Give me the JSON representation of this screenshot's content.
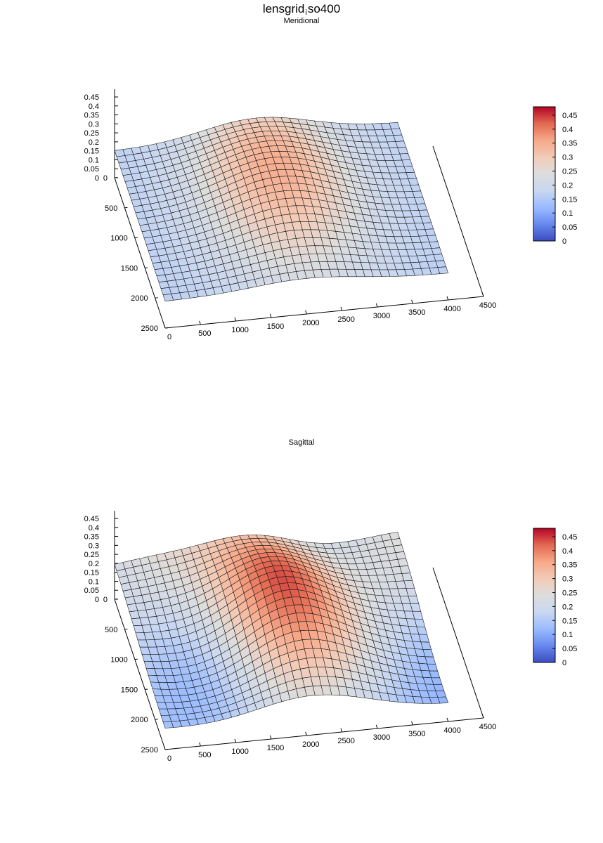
{
  "title": {
    "main": "lensgrid",
    "subscript": "i",
    "suffix": "so400"
  },
  "colorbar": {
    "ticks": [
      "0.45",
      "0.4",
      "0.35",
      "0.3",
      "0.25",
      "0.2",
      "0.15",
      "0.1",
      "0.05",
      "0"
    ],
    "range": [
      0,
      0.48
    ],
    "colormap": [
      "#3b4cc0",
      "#6788ee",
      "#9abbff",
      "#c9d7f0",
      "#dddddd",
      "#f2cbb7",
      "#f7a889",
      "#e26952",
      "#b40426"
    ]
  },
  "chart_data": [
    {
      "type": "surface",
      "title": "Meridional",
      "x_ticks": [
        "0",
        "500",
        "1000",
        "1500",
        "2000",
        "2500",
        "3000",
        "3500",
        "4000",
        "4500"
      ],
      "y_ticks": [
        "0",
        "500",
        "1000",
        "1500",
        "2000",
        "2500"
      ],
      "z_ticks": [
        "0.45",
        "0.4",
        "0.35",
        "0.3",
        "0.25",
        "0.2",
        "0.15",
        "0.1",
        "0.05",
        "0"
      ],
      "xlim": [
        0,
        4500
      ],
      "ylim": [
        0,
        2500
      ],
      "zlim": [
        0,
        0.45
      ],
      "surface": {
        "x_range": [
          0,
          4000
        ],
        "y_range": [
          0,
          2500
        ],
        "base": 0.165,
        "peak": {
          "x": 2000,
          "y": 950,
          "height": 0.185,
          "sigma_x": 750,
          "sigma_y": 1000
        },
        "ripple": 0
      }
    },
    {
      "type": "surface",
      "title": "Sagittal",
      "x_ticks": [
        "0",
        "500",
        "1000",
        "1500",
        "2000",
        "2500",
        "3000",
        "3500",
        "4000",
        "4500"
      ],
      "y_ticks": [
        "0",
        "500",
        "1000",
        "1500",
        "2000",
        "2500"
      ],
      "z_ticks": [
        "0.45",
        "0.4",
        "0.35",
        "0.3",
        "0.25",
        "0.2",
        "0.15",
        "0.1",
        "0.05",
        "0"
      ],
      "xlim": [
        0,
        4500
      ],
      "ylim": [
        0,
        2500
      ],
      "zlim": [
        0,
        0.45
      ],
      "surface": {
        "x_range": [
          0,
          4000
        ],
        "y_range": [
          0,
          2500
        ],
        "base": 0.19,
        "peak": {
          "x": 2000,
          "y": 900,
          "height": 0.27,
          "sigma_x": 650,
          "sigma_y": 900
        },
        "ripple": 0.03
      }
    }
  ]
}
